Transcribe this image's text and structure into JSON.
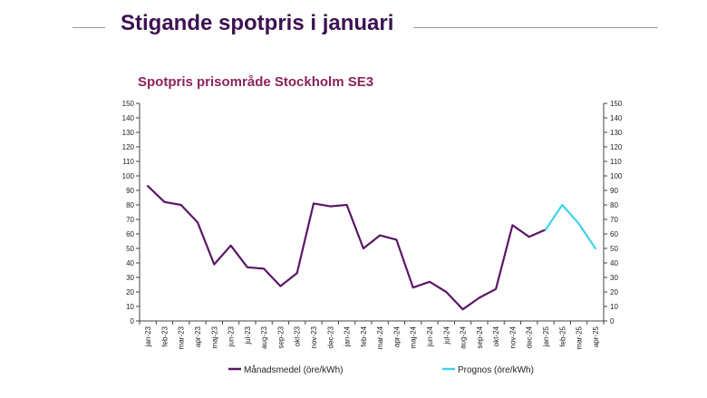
{
  "slide": {
    "title": "Stigande spotpris i januari"
  },
  "colors": {
    "title": "#3d1152",
    "chart_title": "#8a2459",
    "series_main": "#5b1766",
    "series_forecast": "#3fd3ea"
  },
  "chart_data": {
    "type": "line",
    "title": "Spotpris prisområde Stockholm SE3",
    "categories": [
      "jan-23",
      "feb-23",
      "mar-23",
      "apr-23",
      "maj-23",
      "jun-23",
      "jul-23",
      "aug-23",
      "sep-23",
      "okt-23",
      "nov-23",
      "dec-23",
      "jan-24",
      "feb-24",
      "mar-24",
      "apr-24",
      "maj-24",
      "jun-24",
      "jul-24",
      "aug-24",
      "sep-24",
      "okt-24",
      "nov-24",
      "dec-24",
      "jan-25",
      "feb-25",
      "mar-25",
      "apr-25"
    ],
    "series": [
      {
        "name": "Månadsmedel (öre/kWh)",
        "color": "#5b1766",
        "values": [
          93,
          82,
          80,
          68,
          39,
          52,
          37,
          36,
          24,
          33,
          81,
          79,
          80,
          50,
          59,
          56,
          23,
          27,
          20,
          8,
          16,
          22,
          66,
          58,
          63,
          null,
          null,
          null
        ]
      },
      {
        "name": "Prognos (öre/kWh)",
        "color": "#3fd3ea",
        "values": [
          null,
          null,
          null,
          null,
          null,
          null,
          null,
          null,
          null,
          null,
          null,
          null,
          null,
          null,
          null,
          null,
          null,
          null,
          null,
          null,
          null,
          null,
          null,
          null,
          63,
          80,
          67,
          50
        ]
      }
    ],
    "ylim": [
      0,
      150
    ],
    "yticks": [
      0,
      10,
      20,
      30,
      40,
      50,
      60,
      70,
      80,
      90,
      100,
      110,
      120,
      130,
      140,
      150
    ],
    "secondary_y": true,
    "grid": false,
    "legend": "bottom"
  }
}
